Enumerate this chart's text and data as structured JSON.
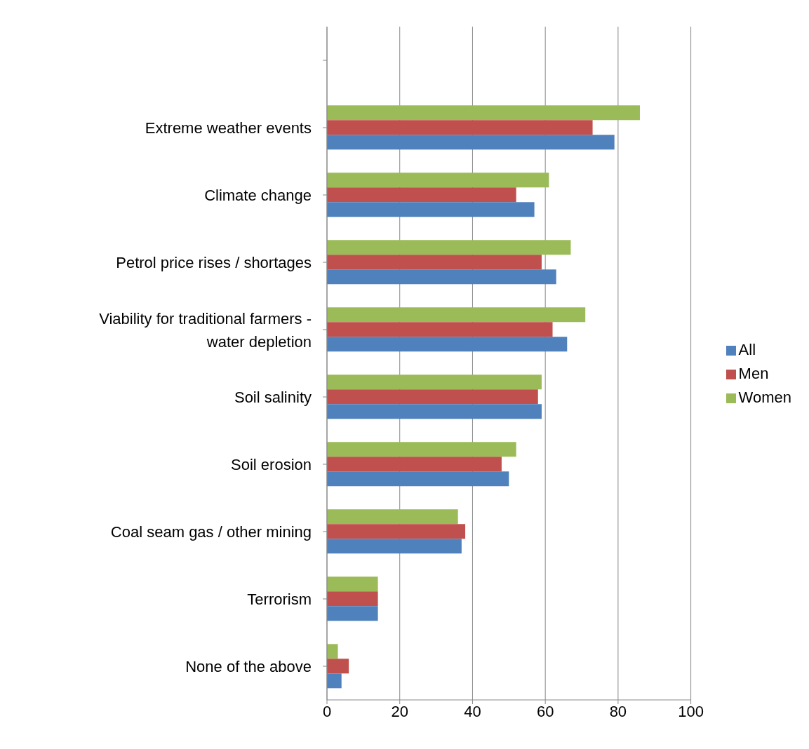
{
  "chart_data": {
    "type": "bar",
    "orientation": "horizontal",
    "categories": [
      null,
      "Extreme weather events",
      "Climate change",
      "Petrol price rises / shortages",
      "Viability for traditional farmers - water depletion",
      "Soil salinity",
      "Soil erosion",
      "Coal seam gas / other mining",
      "Terrorism",
      "None of the above"
    ],
    "series": [
      {
        "name": "Women",
        "color": "#9bbb59",
        "values": [
          null,
          86,
          61,
          67,
          71,
          59,
          52,
          36,
          14,
          3
        ]
      },
      {
        "name": "Men",
        "color": "#c0504d",
        "values": [
          null,
          73,
          52,
          59,
          62,
          58,
          48,
          38,
          14,
          6
        ]
      },
      {
        "name": "All",
        "color": "#4f81bd",
        "values": [
          null,
          79,
          57,
          63,
          66,
          59,
          50,
          37,
          14,
          4
        ]
      }
    ],
    "xlim": [
      0,
      100
    ],
    "xticks": [
      0,
      20,
      40,
      60,
      80,
      100
    ],
    "grid": "x",
    "legend": "right"
  }
}
